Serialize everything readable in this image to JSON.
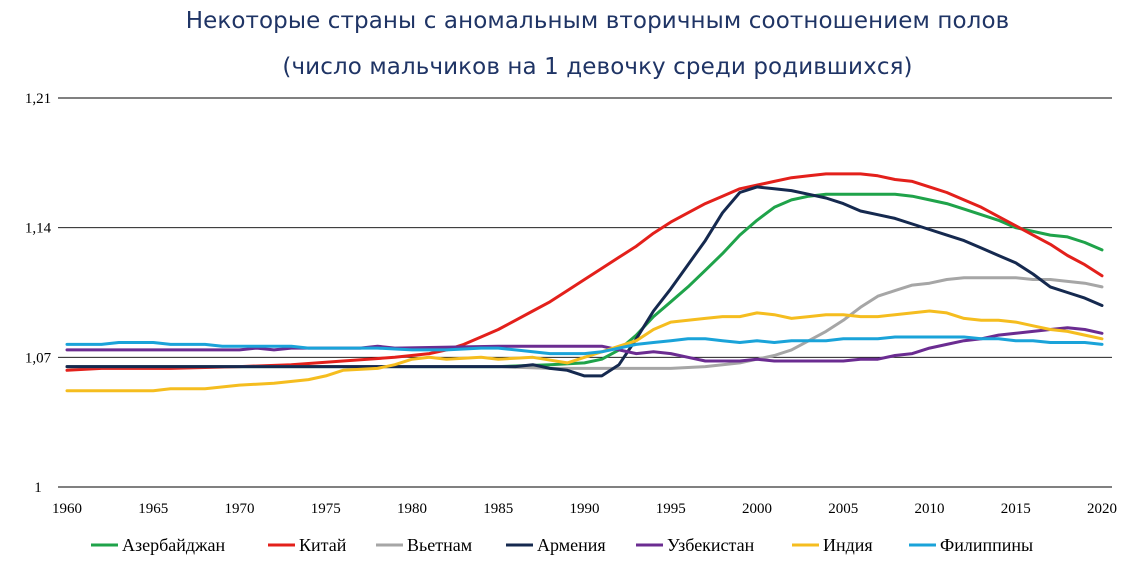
{
  "header": {
    "title_line1": "Некоторые страны с аномальным вторичным соотношением полов",
    "title_line2": "(число мальчиков на 1 девочку среди родившихся)"
  },
  "chart_data": {
    "type": "line",
    "title": "Некоторые страны с аномальным вторичным соотношением полов (число мальчиков на 1 девочку среди родившихся)",
    "xlabel": "",
    "ylabel": "",
    "xlim": [
      1960,
      2020
    ],
    "ylim": [
      1.0,
      1.21
    ],
    "x_ticks": [
      1960,
      1965,
      1970,
      1975,
      1980,
      1985,
      1990,
      1995,
      2000,
      2005,
      2010,
      2015,
      2020
    ],
    "y_ticks": [
      1.0,
      1.07,
      1.14,
      1.21
    ],
    "y_tick_labels": [
      "1",
      "1,07",
      "1,14",
      "1,21"
    ],
    "grid": "horizontal",
    "legend_position": "bottom",
    "series": [
      {
        "name": "Азербайджан",
        "color": "#1fa34a",
        "points": [
          [
            1960,
            1.065
          ],
          [
            1985,
            1.065
          ],
          [
            1988,
            1.066
          ],
          [
            1990,
            1.067
          ],
          [
            1991,
            1.069
          ],
          [
            1992,
            1.074
          ],
          [
            1993,
            1.082
          ],
          [
            1994,
            1.092
          ],
          [
            1995,
            1.1
          ],
          [
            1996,
            1.108
          ],
          [
            1997,
            1.117
          ],
          [
            1998,
            1.126
          ],
          [
            1999,
            1.136
          ],
          [
            2000,
            1.144
          ],
          [
            2001,
            1.151
          ],
          [
            2002,
            1.155
          ],
          [
            2003,
            1.157
          ],
          [
            2004,
            1.158
          ],
          [
            2005,
            1.158
          ],
          [
            2006,
            1.158
          ],
          [
            2007,
            1.158
          ],
          [
            2008,
            1.158
          ],
          [
            2009,
            1.157
          ],
          [
            2010,
            1.155
          ],
          [
            2011,
            1.153
          ],
          [
            2012,
            1.15
          ],
          [
            2013,
            1.147
          ],
          [
            2014,
            1.144
          ],
          [
            2015,
            1.14
          ],
          [
            2016,
            1.138
          ],
          [
            2017,
            1.136
          ],
          [
            2018,
            1.135
          ],
          [
            2019,
            1.132
          ],
          [
            2020,
            1.128
          ]
        ]
      },
      {
        "name": "Китай",
        "color": "#e3201b",
        "points": [
          [
            1960,
            1.063
          ],
          [
            1962,
            1.064
          ],
          [
            1966,
            1.064
          ],
          [
            1970,
            1.065
          ],
          [
            1973,
            1.066
          ],
          [
            1976,
            1.068
          ],
          [
            1979,
            1.07
          ],
          [
            1981,
            1.072
          ],
          [
            1982,
            1.074
          ],
          [
            1983,
            1.077
          ],
          [
            1984,
            1.081
          ],
          [
            1985,
            1.085
          ],
          [
            1986,
            1.09
          ],
          [
            1987,
            1.095
          ],
          [
            1988,
            1.1
          ],
          [
            1989,
            1.106
          ],
          [
            1990,
            1.112
          ],
          [
            1991,
            1.118
          ],
          [
            1992,
            1.124
          ],
          [
            1993,
            1.13
          ],
          [
            1994,
            1.137
          ],
          [
            1995,
            1.143
          ],
          [
            1996,
            1.148
          ],
          [
            1997,
            1.153
          ],
          [
            1998,
            1.157
          ],
          [
            1999,
            1.161
          ],
          [
            2000,
            1.163
          ],
          [
            2001,
            1.165
          ],
          [
            2002,
            1.167
          ],
          [
            2003,
            1.168
          ],
          [
            2004,
            1.169
          ],
          [
            2005,
            1.169
          ],
          [
            2006,
            1.169
          ],
          [
            2007,
            1.168
          ],
          [
            2008,
            1.166
          ],
          [
            2009,
            1.165
          ],
          [
            2010,
            1.162
          ],
          [
            2011,
            1.159
          ],
          [
            2012,
            1.155
          ],
          [
            2013,
            1.151
          ],
          [
            2014,
            1.146
          ],
          [
            2015,
            1.141
          ],
          [
            2016,
            1.136
          ],
          [
            2017,
            1.131
          ],
          [
            2018,
            1.125
          ],
          [
            2019,
            1.12
          ],
          [
            2020,
            1.114
          ]
        ]
      },
      {
        "name": "Вьетнам",
        "color": "#a6a6a6",
        "points": [
          [
            1960,
            1.065
          ],
          [
            1985,
            1.065
          ],
          [
            1988,
            1.064
          ],
          [
            1990,
            1.064
          ],
          [
            1992,
            1.064
          ],
          [
            1995,
            1.064
          ],
          [
            1997,
            1.065
          ],
          [
            1999,
            1.067
          ],
          [
            2000,
            1.069
          ],
          [
            2001,
            1.071
          ],
          [
            2002,
            1.074
          ],
          [
            2003,
            1.079
          ],
          [
            2004,
            1.084
          ],
          [
            2005,
            1.09
          ],
          [
            2006,
            1.097
          ],
          [
            2007,
            1.103
          ],
          [
            2008,
            1.106
          ],
          [
            2009,
            1.109
          ],
          [
            2010,
            1.11
          ],
          [
            2011,
            1.112
          ],
          [
            2012,
            1.113
          ],
          [
            2013,
            1.113
          ],
          [
            2014,
            1.113
          ],
          [
            2015,
            1.113
          ],
          [
            2016,
            1.112
          ],
          [
            2017,
            1.112
          ],
          [
            2018,
            1.111
          ],
          [
            2019,
            1.11
          ],
          [
            2020,
            1.108
          ]
        ]
      },
      {
        "name": "Армения",
        "color": "#15294f",
        "points": [
          [
            1960,
            1.065
          ],
          [
            1986,
            1.065
          ],
          [
            1987,
            1.066
          ],
          [
            1988,
            1.064
          ],
          [
            1989,
            1.063
          ],
          [
            1990,
            1.06
          ],
          [
            1991,
            1.06
          ],
          [
            1992,
            1.066
          ],
          [
            1993,
            1.08
          ],
          [
            1994,
            1.095
          ],
          [
            1995,
            1.107
          ],
          [
            1996,
            1.12
          ],
          [
            1997,
            1.133
          ],
          [
            1998,
            1.148
          ],
          [
            1999,
            1.159
          ],
          [
            2000,
            1.162
          ],
          [
            2001,
            1.161
          ],
          [
            2002,
            1.16
          ],
          [
            2003,
            1.158
          ],
          [
            2004,
            1.156
          ],
          [
            2005,
            1.153
          ],
          [
            2006,
            1.149
          ],
          [
            2007,
            1.147
          ],
          [
            2008,
            1.145
          ],
          [
            2009,
            1.142
          ],
          [
            2010,
            1.139
          ],
          [
            2011,
            1.136
          ],
          [
            2012,
            1.133
          ],
          [
            2013,
            1.129
          ],
          [
            2014,
            1.125
          ],
          [
            2015,
            1.121
          ],
          [
            2016,
            1.115
          ],
          [
            2017,
            1.108
          ],
          [
            2018,
            1.105
          ],
          [
            2019,
            1.102
          ],
          [
            2020,
            1.098
          ]
        ]
      },
      {
        "name": "Узбекистан",
        "color": "#6b2c91",
        "points": [
          [
            1960,
            1.074
          ],
          [
            1970,
            1.074
          ],
          [
            1971,
            1.075
          ],
          [
            1972,
            1.074
          ],
          [
            1973,
            1.075
          ],
          [
            1975,
            1.075
          ],
          [
            1977,
            1.075
          ],
          [
            1978,
            1.076
          ],
          [
            1979,
            1.075
          ],
          [
            1985,
            1.076
          ],
          [
            1990,
            1.076
          ],
          [
            1991,
            1.076
          ],
          [
            1992,
            1.074
          ],
          [
            1993,
            1.072
          ],
          [
            1994,
            1.073
          ],
          [
            1995,
            1.072
          ],
          [
            1996,
            1.07
          ],
          [
            1997,
            1.068
          ],
          [
            1999,
            1.068
          ],
          [
            2000,
            1.069
          ],
          [
            2001,
            1.068
          ],
          [
            2004,
            1.068
          ],
          [
            2005,
            1.068
          ],
          [
            2006,
            1.069
          ],
          [
            2007,
            1.069
          ],
          [
            2008,
            1.071
          ],
          [
            2009,
            1.072
          ],
          [
            2010,
            1.075
          ],
          [
            2011,
            1.077
          ],
          [
            2012,
            1.079
          ],
          [
            2013,
            1.08
          ],
          [
            2014,
            1.082
          ],
          [
            2015,
            1.083
          ],
          [
            2016,
            1.084
          ],
          [
            2017,
            1.085
          ],
          [
            2018,
            1.086
          ],
          [
            2019,
            1.085
          ],
          [
            2020,
            1.083
          ]
        ]
      },
      {
        "name": "Индия",
        "color": "#f5bd1f",
        "points": [
          [
            1960,
            1.052
          ],
          [
            1965,
            1.052
          ],
          [
            1966,
            1.053
          ],
          [
            1968,
            1.053
          ],
          [
            1970,
            1.055
          ],
          [
            1972,
            1.056
          ],
          [
            1974,
            1.058
          ],
          [
            1975,
            1.06
          ],
          [
            1976,
            1.063
          ],
          [
            1978,
            1.064
          ],
          [
            1979,
            1.066
          ],
          [
            1980,
            1.069
          ],
          [
            1981,
            1.07
          ],
          [
            1982,
            1.069
          ],
          [
            1984,
            1.07
          ],
          [
            1985,
            1.069
          ],
          [
            1987,
            1.07
          ],
          [
            1989,
            1.067
          ],
          [
            1990,
            1.07
          ],
          [
            1991,
            1.073
          ],
          [
            1992,
            1.076
          ],
          [
            1993,
            1.079
          ],
          [
            1994,
            1.085
          ],
          [
            1995,
            1.089
          ],
          [
            1996,
            1.09
          ],
          [
            1997,
            1.091
          ],
          [
            1998,
            1.092
          ],
          [
            1999,
            1.092
          ],
          [
            2000,
            1.094
          ],
          [
            2001,
            1.093
          ],
          [
            2002,
            1.091
          ],
          [
            2003,
            1.092
          ],
          [
            2004,
            1.093
          ],
          [
            2005,
            1.093
          ],
          [
            2006,
            1.092
          ],
          [
            2007,
            1.092
          ],
          [
            2008,
            1.093
          ],
          [
            2009,
            1.094
          ],
          [
            2010,
            1.095
          ],
          [
            2011,
            1.094
          ],
          [
            2012,
            1.091
          ],
          [
            2013,
            1.09
          ],
          [
            2014,
            1.09
          ],
          [
            2015,
            1.089
          ],
          [
            2016,
            1.087
          ],
          [
            2017,
            1.085
          ],
          [
            2018,
            1.084
          ],
          [
            2019,
            1.082
          ],
          [
            2020,
            1.08
          ]
        ]
      },
      {
        "name": "Филиппины",
        "color": "#1aa3d9",
        "points": [
          [
            1960,
            1.077
          ],
          [
            1962,
            1.077
          ],
          [
            1963,
            1.078
          ],
          [
            1965,
            1.078
          ],
          [
            1966,
            1.077
          ],
          [
            1968,
            1.077
          ],
          [
            1969,
            1.076
          ],
          [
            1973,
            1.076
          ],
          [
            1974,
            1.075
          ],
          [
            1978,
            1.075
          ],
          [
            1980,
            1.074
          ],
          [
            1982,
            1.074
          ],
          [
            1984,
            1.075
          ],
          [
            1985,
            1.075
          ],
          [
            1986,
            1.074
          ],
          [
            1987,
            1.073
          ],
          [
            1988,
            1.072
          ],
          [
            1990,
            1.072
          ],
          [
            1991,
            1.073
          ],
          [
            1992,
            1.075
          ],
          [
            1993,
            1.077
          ],
          [
            1994,
            1.078
          ],
          [
            1995,
            1.079
          ],
          [
            1996,
            1.08
          ],
          [
            1997,
            1.08
          ],
          [
            1998,
            1.079
          ],
          [
            1999,
            1.078
          ],
          [
            2000,
            1.079
          ],
          [
            2001,
            1.078
          ],
          [
            2002,
            1.079
          ],
          [
            2004,
            1.079
          ],
          [
            2005,
            1.08
          ],
          [
            2007,
            1.08
          ],
          [
            2008,
            1.081
          ],
          [
            2012,
            1.081
          ],
          [
            2013,
            1.08
          ],
          [
            2014,
            1.08
          ],
          [
            2015,
            1.079
          ],
          [
            2016,
            1.079
          ],
          [
            2017,
            1.078
          ],
          [
            2019,
            1.078
          ],
          [
            2020,
            1.077
          ]
        ]
      }
    ]
  }
}
